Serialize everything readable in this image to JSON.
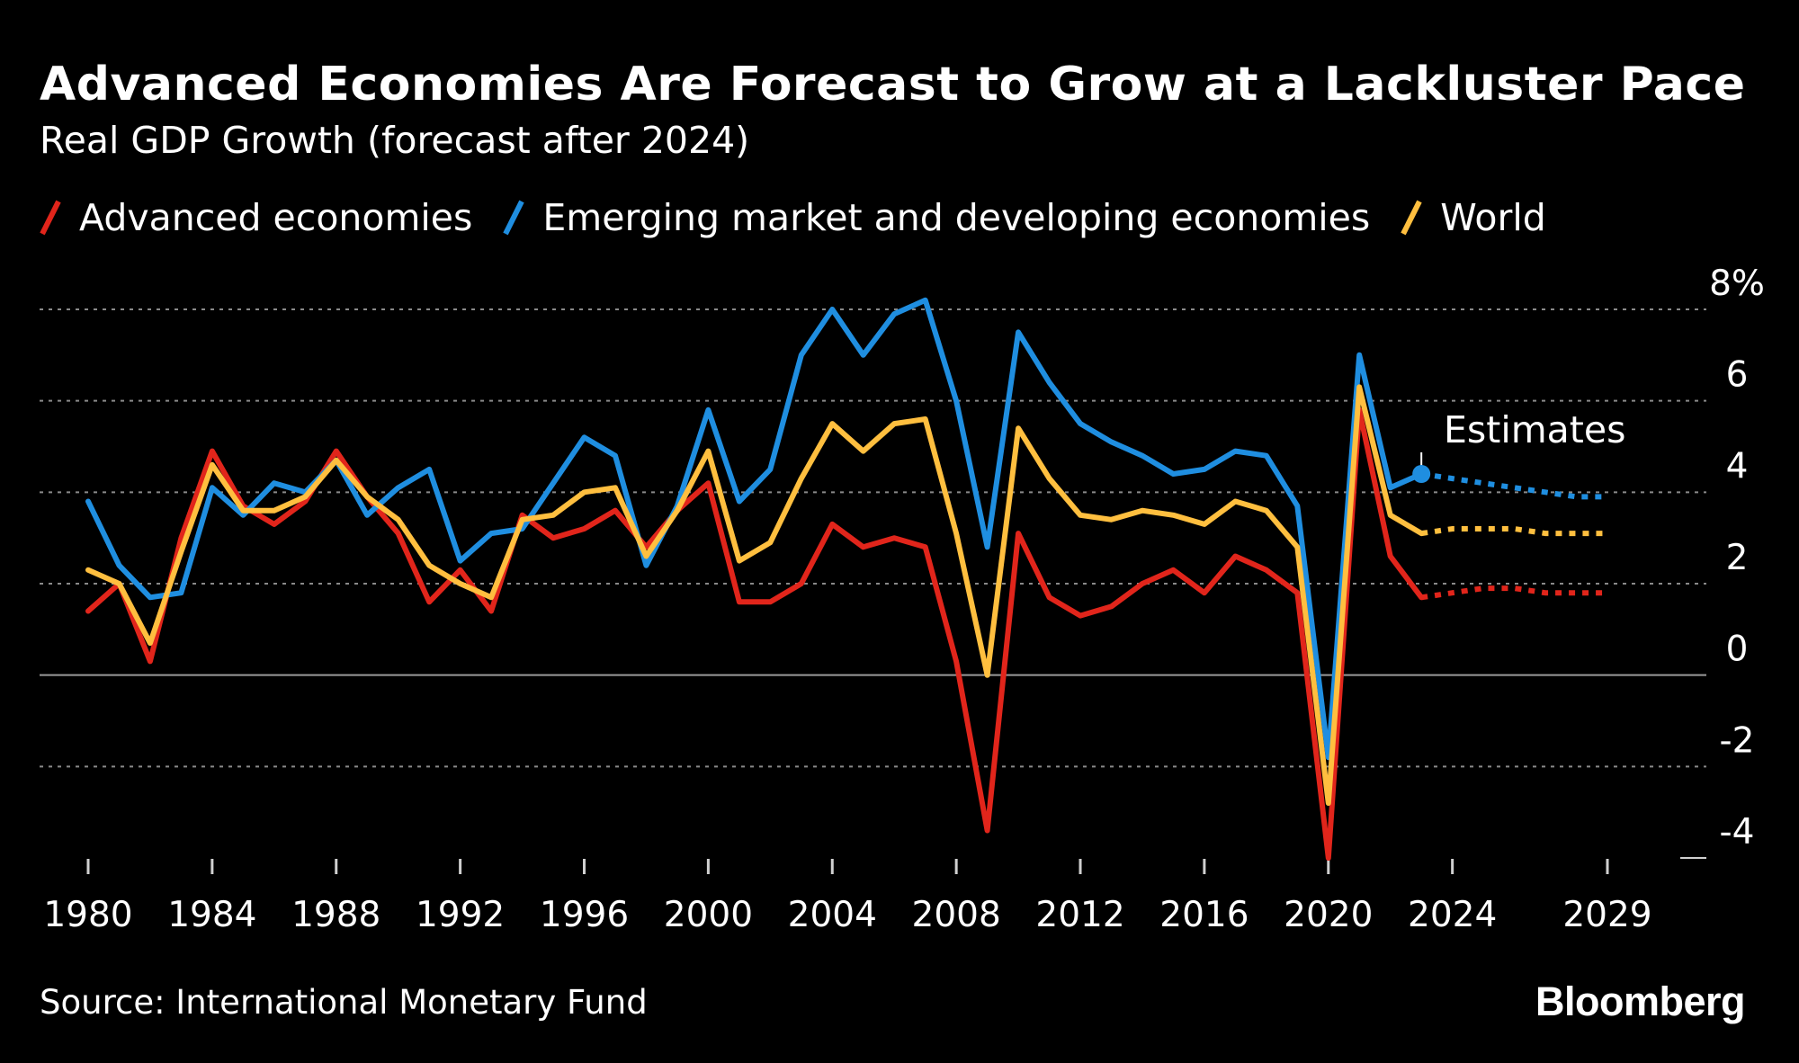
{
  "title": "Advanced Economies Are Forecast to Grow at a Lackluster Pace",
  "subtitle": "Real GDP Growth (forecast after 2024)",
  "source": "Source: International Monetary Fund",
  "brand": "Bloomberg",
  "colors": {
    "background": "#000000",
    "advanced": "#e1251b",
    "emerging": "#1f8ee0",
    "world": "#ffbf3f",
    "grid": "#8a8a8a",
    "text": "#ffffff"
  },
  "chart_data": {
    "type": "line",
    "title": "Advanced Economies Are Forecast to Grow at a Lackluster Pace",
    "subtitle": "Real GDP Growth (forecast after 2024)",
    "xlabel": "",
    "ylabel": "",
    "xlim": [
      1980,
      2029
    ],
    "ylim": [
      -4,
      8
    ],
    "x_ticks": [
      1980,
      1984,
      1988,
      1992,
      1996,
      2000,
      2004,
      2008,
      2012,
      2016,
      2020,
      2024,
      2029
    ],
    "y_ticks": [
      8,
      6,
      4,
      2,
      0,
      -2,
      -4
    ],
    "y_tick_labels": [
      "8%",
      "6",
      "4",
      "2",
      "0",
      "-2",
      "-4"
    ],
    "grid": true,
    "legend_position": "top-left",
    "annotation": {
      "text": "Estimates",
      "x": 2023,
      "y": 4.2
    },
    "estimates_start": 2023,
    "x": [
      1980,
      1981,
      1982,
      1983,
      1984,
      1985,
      1986,
      1987,
      1988,
      1989,
      1990,
      1991,
      1992,
      1993,
      1994,
      1995,
      1996,
      1997,
      1998,
      1999,
      2000,
      2001,
      2002,
      2003,
      2004,
      2005,
      2006,
      2007,
      2008,
      2009,
      2010,
      2011,
      2012,
      2013,
      2014,
      2015,
      2016,
      2017,
      2018,
      2019,
      2020,
      2021,
      2022,
      2023,
      2024,
      2025,
      2026,
      2027,
      2028,
      2029
    ],
    "series": [
      {
        "name": "Advanced economies",
        "color": "#e1251b",
        "values": [
          1.4,
          2.0,
          0.3,
          3.0,
          4.9,
          3.7,
          3.3,
          3.8,
          4.9,
          3.9,
          3.1,
          1.6,
          2.3,
          1.4,
          3.5,
          3.0,
          3.2,
          3.6,
          2.8,
          3.6,
          4.2,
          1.6,
          1.6,
          2.0,
          3.3,
          2.8,
          3.0,
          2.8,
          0.3,
          -3.4,
          3.1,
          1.7,
          1.3,
          1.5,
          2.0,
          2.3,
          1.8,
          2.6,
          2.3,
          1.8,
          -4.0,
          5.8,
          2.6,
          1.7,
          1.8,
          1.9,
          1.9,
          1.8,
          1.8,
          1.8
        ]
      },
      {
        "name": "Emerging market and developing economies",
        "color": "#1f8ee0",
        "values": [
          3.8,
          2.4,
          1.7,
          1.8,
          4.1,
          3.5,
          4.2,
          4.0,
          4.7,
          3.5,
          4.1,
          4.5,
          2.5,
          3.1,
          3.2,
          4.2,
          5.2,
          4.8,
          2.4,
          3.7,
          5.8,
          3.8,
          4.5,
          7.0,
          8.0,
          7.0,
          7.9,
          8.2,
          6.0,
          2.8,
          7.5,
          6.4,
          5.5,
          5.1,
          4.8,
          4.4,
          4.5,
          4.9,
          4.8,
          3.7,
          -1.8,
          7.0,
          4.1,
          4.4,
          4.3,
          4.2,
          4.1,
          4.0,
          3.9,
          3.9
        ]
      },
      {
        "name": "World",
        "color": "#ffbf3f",
        "values": [
          2.3,
          2.0,
          0.7,
          2.7,
          4.6,
          3.6,
          3.6,
          3.9,
          4.7,
          3.9,
          3.4,
          2.4,
          2.0,
          1.7,
          3.4,
          3.5,
          4.0,
          4.1,
          2.6,
          3.6,
          4.9,
          2.5,
          2.9,
          4.3,
          5.5,
          4.9,
          5.5,
          5.6,
          3.1,
          0.0,
          5.4,
          4.3,
          3.5,
          3.4,
          3.6,
          3.5,
          3.3,
          3.8,
          3.6,
          2.8,
          -2.8,
          6.3,
          3.5,
          3.1,
          3.2,
          3.2,
          3.2,
          3.1,
          3.1,
          3.1
        ]
      }
    ]
  }
}
